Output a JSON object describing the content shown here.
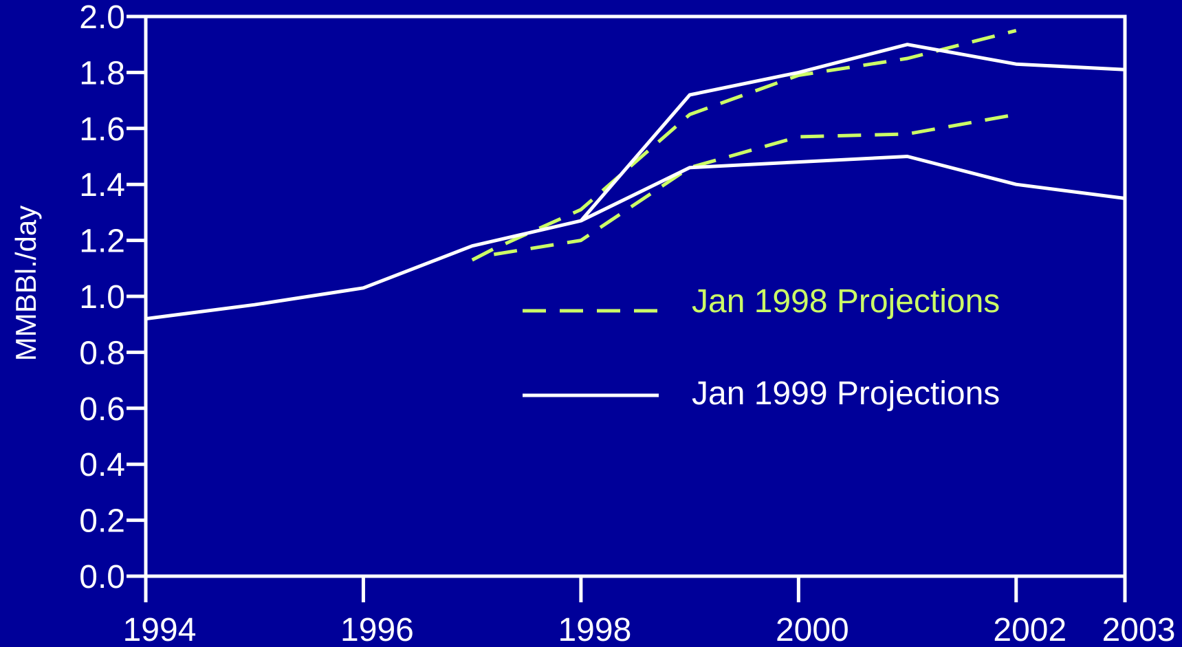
{
  "chart_data": {
    "type": "line",
    "title": "",
    "xlabel": "",
    "ylabel": "MMBBl./day",
    "xlim": [
      1994,
      2003
    ],
    "ylim": [
      0.0,
      2.0
    ],
    "x_ticks": [
      1994,
      1996,
      1998,
      2000,
      2002,
      2003
    ],
    "y_ticks": [
      "0.0",
      "0.2",
      "0.4",
      "0.6",
      "0.8",
      "1.0",
      "1.2",
      "1.4",
      "1.6",
      "1.8",
      "2.0"
    ],
    "background": "#000099",
    "legend_position": "center-right",
    "series": [
      {
        "name": "Jan 1998 Projections",
        "color": "#ccff66",
        "style": "dashed",
        "lines": [
          {
            "x": [
              1997.0,
              1997.2,
              1998.0,
              1999.0,
              2000.0,
              2001.0,
              2002.0
            ],
            "y": [
              1.13,
              1.17,
              1.31,
              1.65,
              1.79,
              1.85,
              1.95
            ]
          },
          {
            "x": [
              1997.2,
              1998.0,
              1999.0,
              2000.0,
              2001.0,
              2002.0
            ],
            "y": [
              1.15,
              1.2,
              1.46,
              1.57,
              1.58,
              1.65
            ]
          }
        ]
      },
      {
        "name": "Jan 1999 Projections",
        "color": "#ffffff",
        "style": "solid",
        "lines": [
          {
            "x": [
              1994.0,
              1995.0,
              1996.0,
              1997.0,
              1998.0,
              1999.0,
              2000.0,
              2001.0,
              2002.0,
              2003.0
            ],
            "y": [
              0.92,
              0.97,
              1.03,
              1.18,
              1.27,
              1.72,
              1.8,
              1.9,
              1.83,
              1.81
            ]
          },
          {
            "x": [
              1998.0,
              1999.0,
              2000.0,
              2001.0,
              2002.0,
              2003.0
            ],
            "y": [
              1.27,
              1.46,
              1.48,
              1.5,
              1.4,
              1.35
            ]
          }
        ]
      }
    ]
  }
}
